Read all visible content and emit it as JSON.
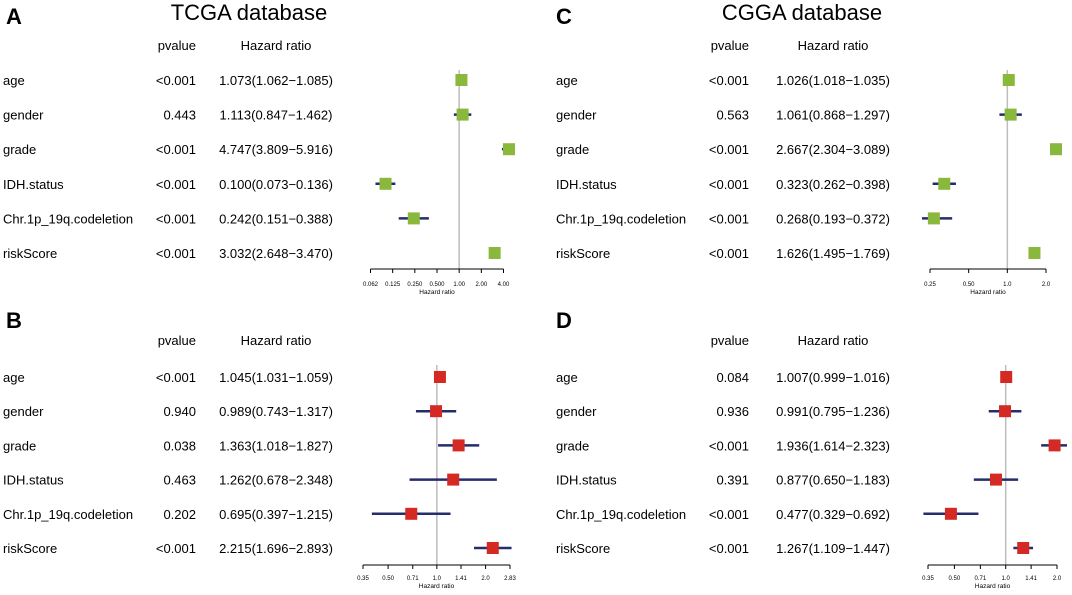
{
  "chart_data": [
    {
      "type": "forest",
      "panel": "A",
      "title": "TCGA database",
      "col_pvalue": "pvalue",
      "col_hr": "Hazard ratio",
      "xlabel": "Hazard ratio",
      "xscale": "log2",
      "xlim": [
        0.0625,
        4.0
      ],
      "ticks": [
        0.0625,
        0.125,
        0.25,
        0.5,
        1.0,
        2.0,
        4.0
      ],
      "tick_labels": [
        "0.062",
        "0.125",
        "0.250",
        "0.500",
        "1.00",
        "2.00",
        "4.00"
      ],
      "color": "#8ab83c",
      "rows": [
        {
          "label": "age",
          "pvalue": "<0.001",
          "hr_text": "1.073(1.062−1.085)",
          "hr": 1.073,
          "lo": 1.062,
          "hi": 1.085
        },
        {
          "label": "gender",
          "pvalue": "0.443",
          "hr_text": "1.113(0.847−1.462)",
          "hr": 1.113,
          "lo": 0.847,
          "hi": 1.462
        },
        {
          "label": "grade",
          "pvalue": "<0.001",
          "hr_text": "4.747(3.809−5.916)",
          "hr": 4.747,
          "lo": 3.809,
          "hi": 5.916
        },
        {
          "label": "IDH.status",
          "pvalue": "<0.001",
          "hr_text": "0.100(0.073−0.136)",
          "hr": 0.1,
          "lo": 0.073,
          "hi": 0.136
        },
        {
          "label": "Chr.1p_19q.codeletion",
          "pvalue": "<0.001",
          "hr_text": "0.242(0.151−0.388)",
          "hr": 0.242,
          "lo": 0.151,
          "hi": 0.388
        },
        {
          "label": "riskScore",
          "pvalue": "<0.001",
          "hr_text": "3.032(2.648−3.470)",
          "hr": 3.032,
          "lo": 2.648,
          "hi": 3.47
        }
      ]
    },
    {
      "type": "forest",
      "panel": "B",
      "title": "",
      "col_pvalue": "pvalue",
      "col_hr": "Hazard ratio",
      "xlabel": "Hazard ratio",
      "xscale": "log2",
      "xlim": [
        0.35,
        2.83
      ],
      "ticks": [
        0.35,
        0.5,
        0.71,
        1.0,
        1.41,
        2.0,
        2.83
      ],
      "tick_labels": [
        "0.35",
        "0.50",
        "0.71",
        "1.0",
        "1.41",
        "2.0",
        "2.83"
      ],
      "color": "#d42a23",
      "rows": [
        {
          "label": "age",
          "pvalue": "<0.001",
          "hr_text": "1.045(1.031−1.059)",
          "hr": 1.045,
          "lo": 1.031,
          "hi": 1.059
        },
        {
          "label": "gender",
          "pvalue": "0.940",
          "hr_text": "0.989(0.743−1.317)",
          "hr": 0.989,
          "lo": 0.743,
          "hi": 1.317
        },
        {
          "label": "grade",
          "pvalue": "0.038",
          "hr_text": "1.363(1.018−1.827)",
          "hr": 1.363,
          "lo": 1.018,
          "hi": 1.827
        },
        {
          "label": "IDH.status",
          "pvalue": "0.463",
          "hr_text": "1.262(0.678−2.348)",
          "hr": 1.262,
          "lo": 0.678,
          "hi": 2.348
        },
        {
          "label": "Chr.1p_19q.codeletion",
          "pvalue": "0.202",
          "hr_text": "0.695(0.397−1.215)",
          "hr": 0.695,
          "lo": 0.397,
          "hi": 1.215
        },
        {
          "label": "riskScore",
          "pvalue": "<0.001",
          "hr_text": "2.215(1.696−2.893)",
          "hr": 2.215,
          "lo": 1.696,
          "hi": 2.893
        }
      ]
    },
    {
      "type": "forest",
      "panel": "C",
      "title": "CGGA database",
      "col_pvalue": "pvalue",
      "col_hr": "Hazard ratio",
      "xlabel": "Hazard ratio",
      "xscale": "log2",
      "xlim": [
        0.25,
        2.0
      ],
      "ticks": [
        0.25,
        0.5,
        1.0,
        2.0
      ],
      "tick_labels": [
        "0.25",
        "0.50",
        "1.0",
        "2.0"
      ],
      "color": "#8ab83c",
      "rows": [
        {
          "label": "age",
          "pvalue": "<0.001",
          "hr_text": "1.026(1.018−1.035)",
          "hr": 1.026,
          "lo": 1.018,
          "hi": 1.035
        },
        {
          "label": "gender",
          "pvalue": "0.563",
          "hr_text": "1.061(0.868−1.297)",
          "hr": 1.061,
          "lo": 0.868,
          "hi": 1.297
        },
        {
          "label": "grade",
          "pvalue": "<0.001",
          "hr_text": "2.667(2.304−3.089)",
          "hr": 2.667,
          "lo": 2.304,
          "hi": 3.089
        },
        {
          "label": "IDH.status",
          "pvalue": "<0.001",
          "hr_text": "0.323(0.262−0.398)",
          "hr": 0.323,
          "lo": 0.262,
          "hi": 0.398
        },
        {
          "label": "Chr.1p_19q.codeletion",
          "pvalue": "<0.001",
          "hr_text": "0.268(0.193−0.372)",
          "hr": 0.268,
          "lo": 0.193,
          "hi": 0.372
        },
        {
          "label": "riskScore",
          "pvalue": "<0.001",
          "hr_text": "1.626(1.495−1.769)",
          "hr": 1.626,
          "lo": 1.495,
          "hi": 1.769
        }
      ]
    },
    {
      "type": "forest",
      "panel": "D",
      "title": "",
      "col_pvalue": "pvalue",
      "col_hr": "Hazard ratio",
      "xlabel": "Hazard ratio",
      "xscale": "log2",
      "xlim": [
        0.35,
        2.0
      ],
      "ticks": [
        0.35,
        0.5,
        0.71,
        1.0,
        1.41,
        2.0
      ],
      "tick_labels": [
        "0.35",
        "0.50",
        "0.71",
        "1.0",
        "1.41",
        "2.0"
      ],
      "color": "#d42a23",
      "rows": [
        {
          "label": "age",
          "pvalue": "0.084",
          "hr_text": "1.007(0.999−1.016)",
          "hr": 1.007,
          "lo": 0.999,
          "hi": 1.016
        },
        {
          "label": "gender",
          "pvalue": "0.936",
          "hr_text": "0.991(0.795−1.236)",
          "hr": 0.991,
          "lo": 0.795,
          "hi": 1.236
        },
        {
          "label": "grade",
          "pvalue": "<0.001",
          "hr_text": "1.936(1.614−2.323)",
          "hr": 1.936,
          "lo": 1.614,
          "hi": 2.323
        },
        {
          "label": "IDH.status",
          "pvalue": "0.391",
          "hr_text": "0.877(0.650−1.183)",
          "hr": 0.877,
          "lo": 0.65,
          "hi": 1.183
        },
        {
          "label": "Chr.1p_19q.codeletion",
          "pvalue": "<0.001",
          "hr_text": "0.477(0.329−0.692)",
          "hr": 0.477,
          "lo": 0.329,
          "hi": 0.692
        },
        {
          "label": "riskScore",
          "pvalue": "<0.001",
          "hr_text": "1.267(1.109−1.447)",
          "hr": 1.267,
          "lo": 1.109,
          "hi": 1.447
        }
      ]
    }
  ],
  "colors": {
    "ci_line": "#262d6b",
    "ref_line": "#bdbdbd",
    "axis": "#000000"
  }
}
